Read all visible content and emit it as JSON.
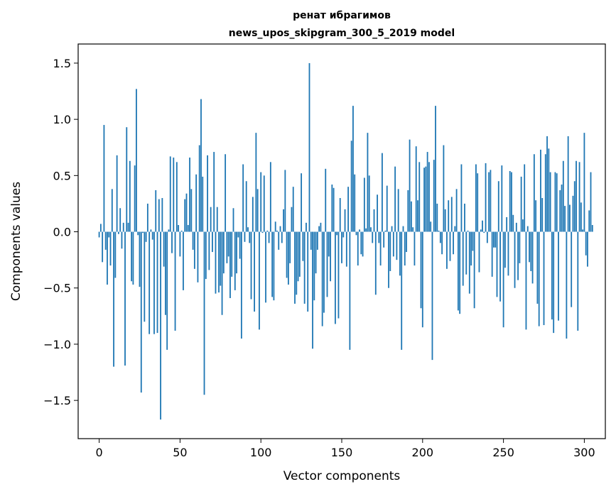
{
  "chart_data": {
    "type": "bar",
    "title": "ренат ибрагимов",
    "subtitle": "news_upos_skipgram_300_5_2019 model",
    "xlabel": "Vector components",
    "ylabel": "Components values",
    "xlim": [
      -13,
      313
    ],
    "ylim": [
      -1.84,
      1.67
    ],
    "xticks": [
      0,
      50,
      100,
      150,
      200,
      250,
      300
    ],
    "yticks": [
      1.5,
      1.0,
      0.5,
      0.0,
      -0.5,
      -1.0,
      -1.5
    ],
    "ytick_labels": [
      "1.5",
      "1.0",
      "0.5",
      "0.0",
      "−0.5",
      "−1.0",
      "−1.5"
    ],
    "bar_color": "#1f77b4",
    "grid": false,
    "values": [
      -0.05,
      0.07,
      -0.27,
      0.95,
      -0.16,
      -0.47,
      -0.05,
      -0.3,
      0.38,
      -1.2,
      -0.41,
      0.68,
      -0.02,
      0.21,
      -0.15,
      0.08,
      -1.19,
      0.93,
      0.08,
      0.63,
      -0.44,
      -0.47,
      0.59,
      1.27,
      -0.03,
      -0.49,
      -1.43,
      -0.01,
      -0.8,
      -0.09,
      0.25,
      -0.91,
      0.02,
      -0.07,
      -0.91,
      0.37,
      -0.9,
      0.29,
      -1.67,
      0.3,
      -0.31,
      -0.74,
      -1.05,
      0.02,
      0.67,
      -0.19,
      0.66,
      -0.88,
      0.62,
      0.06,
      -0.22,
      0.01,
      -0.52,
      0.29,
      0.34,
      0.06,
      0.66,
      0.38,
      -0.16,
      -0.33,
      0.51,
      -0.45,
      0.77,
      1.18,
      0.49,
      -1.45,
      -0.42,
      0.68,
      -0.34,
      0.22,
      -0.18,
      0.71,
      -0.55,
      0.22,
      -0.54,
      -0.48,
      -0.74,
      -0.37,
      0.69,
      -0.28,
      -0.22,
      -0.59,
      -0.4,
      0.21,
      -0.52,
      -0.37,
      -0.05,
      -0.24,
      -0.95,
      0.6,
      -0.09,
      0.45,
      0.04,
      -0.1,
      -0.6,
      0.31,
      -0.71,
      0.88,
      0.38,
      -0.87,
      0.53,
      -0.01,
      0.5,
      -0.63,
      0.01,
      -0.1,
      0.62,
      -0.58,
      -0.61,
      0.09,
      0.01,
      -0.16,
      0.05,
      -0.1,
      0.2,
      0.55,
      -0.41,
      -0.47,
      -0.28,
      0.22,
      0.4,
      -0.64,
      -0.56,
      -0.44,
      -0.4,
      0.52,
      -0.26,
      -0.64,
      0.08,
      -0.71,
      1.5,
      -0.16,
      -1.04,
      -0.61,
      -0.37,
      -0.16,
      0.05,
      0.08,
      -0.84,
      -0.72,
      0.56,
      -0.58,
      -0.22,
      -0.44,
      0.42,
      0.39,
      -0.82,
      -0.03,
      -0.77,
      0.3,
      -0.28,
      -0.05,
      0.2,
      -0.31,
      0.4,
      -1.05,
      0.81,
      1.12,
      0.51,
      -0.03,
      -0.3,
      0.02,
      -0.2,
      -0.22,
      0.48,
      0.03,
      0.88,
      0.5,
      0.04,
      -0.1,
      0.2,
      -0.56,
      0.33,
      -0.1,
      -0.3,
      0.7,
      -0.14,
      0.01,
      0.41,
      -0.5,
      -0.35,
      0.05,
      -0.22,
      0.58,
      -0.25,
      0.38,
      -0.39,
      -1.05,
      0.05,
      -0.3,
      -0.18,
      0.37,
      0.82,
      0.27,
      0.04,
      -0.3,
      0.76,
      0.28,
      0.62,
      -0.68,
      -0.85,
      0.57,
      0.58,
      0.71,
      0.62,
      0.09,
      -1.14,
      0.64,
      1.12,
      0.25,
      0.01,
      -0.1,
      -0.2,
      0.77,
      0.2,
      -0.33,
      0.28,
      -0.26,
      0.31,
      -0.2,
      0.05,
      0.38,
      -0.7,
      -0.73,
      0.6,
      -0.48,
      0.25,
      -0.38,
      0.01,
      -0.55,
      -0.3,
      -0.17,
      -0.68,
      0.6,
      0.52,
      -0.36,
      0.02,
      0.1,
      -0.01,
      0.61,
      -0.1,
      0.53,
      0.55,
      -0.4,
      -0.14,
      -0.14,
      -0.58,
      0.45,
      -0.62,
      0.59,
      -0.85,
      -0.32,
      0.13,
      -0.39,
      0.54,
      0.53,
      0.15,
      -0.5,
      0.08,
      -0.43,
      -0.28,
      0.49,
      0.11,
      0.6,
      -0.87,
      0.05,
      -0.27,
      -0.35,
      -0.46,
      0.69,
      0.28,
      -0.64,
      -0.84,
      0.73,
      0.3,
      -0.83,
      0.69,
      0.85,
      0.74,
      0.53,
      -0.78,
      -0.9,
      0.53,
      0.52,
      -0.79,
      0.37,
      0.42,
      0.63,
      0.23,
      -0.95,
      0.85,
      0.24,
      -0.67,
      0.32,
      0.45,
      0.63,
      -0.88,
      0.62,
      0.26,
      0.02,
      0.88,
      -0.21,
      -0.31,
      0.19,
      0.53,
      0.06
    ]
  }
}
